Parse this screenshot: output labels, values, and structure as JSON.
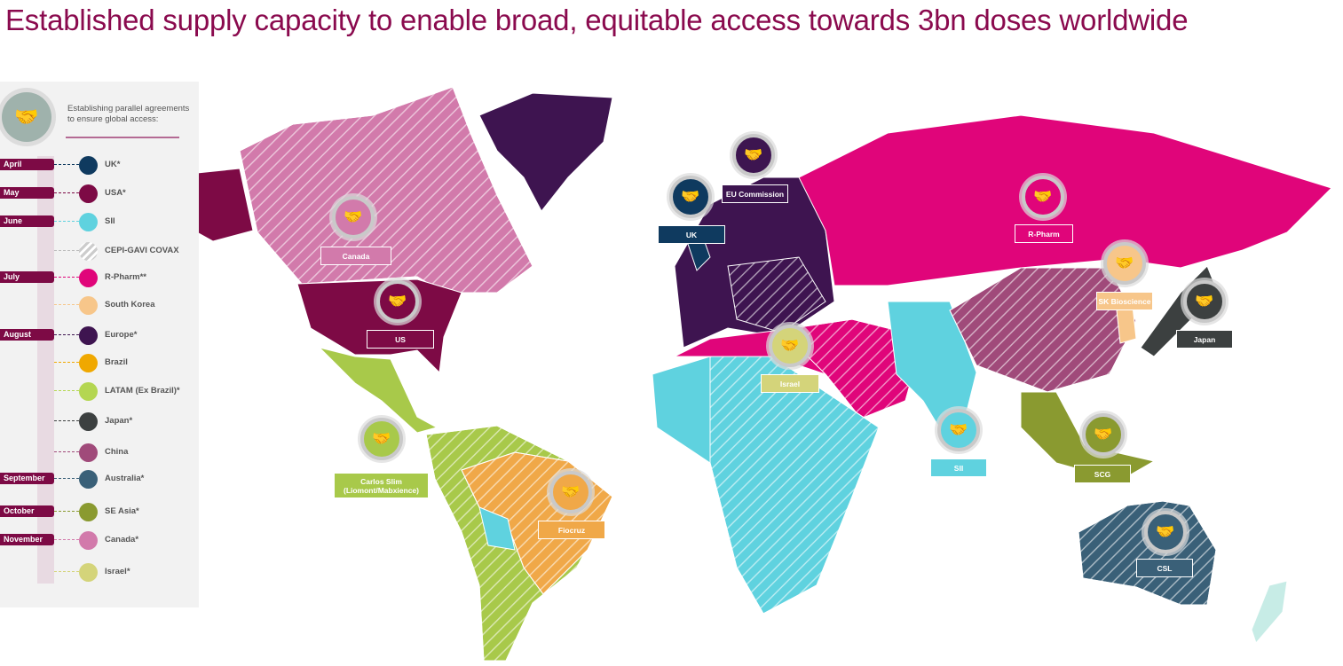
{
  "title": "Established supply capacity to enable broad, equitable access towards 3bn doses worldwide",
  "legend": {
    "intro": "Establishing parallel agreements to ensure global access:",
    "icon": "handshake-icon",
    "rows": [
      {
        "month": "April",
        "label": "UK*",
        "color": "#0f3a5f"
      },
      {
        "month": "May",
        "label": "USA*",
        "color": "#7d0a45"
      },
      {
        "month": "June",
        "label": "SII",
        "color": "#5fd2df"
      },
      {
        "month": "",
        "label": "CEPI-GAVI COVAX",
        "color": "hatched-grey"
      },
      {
        "month": "July",
        "label": "R-Pharm**",
        "color": "#e0057a"
      },
      {
        "month": "",
        "label": "South Korea",
        "color": "#f7c68a"
      },
      {
        "month": "August",
        "label": "Europe*",
        "color": "#3e1450"
      },
      {
        "month": "",
        "label": "Brazil",
        "color": "#f0a800"
      },
      {
        "month": "",
        "label": "LATAM (Ex Brazil)*",
        "color": "#b4d651"
      },
      {
        "month": "",
        "label": "Japan*",
        "color": "#3c4040"
      },
      {
        "month": "",
        "label": "China",
        "color": "#a04a7a"
      },
      {
        "month": "September",
        "label": "Australia*",
        "color": "#3a6078"
      },
      {
        "month": "October",
        "label": "SE Asia*",
        "color": "#8a9a30"
      },
      {
        "month": "November",
        "label": "Canada*",
        "color": "#d27aab"
      },
      {
        "month": "",
        "label": "Israel*",
        "color": "#d4d47a"
      }
    ]
  },
  "markers": [
    {
      "label": "Canada",
      "color": "#d27aab",
      "icon": "handshake-icon"
    },
    {
      "label": "US",
      "color": "#7d0a45",
      "icon": "handshake-icon"
    },
    {
      "label": "Carlos Slim (Liomont/Mabxience)",
      "color": "#a8c94a",
      "icon": "handshake-icon"
    },
    {
      "label": "Fiocruz",
      "color": "#f0a848",
      "icon": "handshake-icon"
    },
    {
      "label": "UK",
      "color": "#0f3a5f",
      "icon": "handshake-icon"
    },
    {
      "label": "EU Commission",
      "color": "#3d1550",
      "icon": "handshake-icon"
    },
    {
      "label": "R-Pharm",
      "color": "#e0057a",
      "icon": "handshake-icon"
    },
    {
      "label": "SK Bioscience",
      "color": "#f7c68a",
      "icon": "handshake-icon"
    },
    {
      "label": "Japan",
      "color": "#3c4040",
      "icon": "handshake-icon"
    },
    {
      "label": "Israel",
      "color": "#d4d47a",
      "icon": "handshake-icon"
    },
    {
      "label": "SII",
      "color": "#5fd2df",
      "icon": "handshake-icon"
    },
    {
      "label": "SCG",
      "color": "#8a9a30",
      "icon": "handshake-icon"
    },
    {
      "label": "CSL",
      "color": "#3a6078",
      "icon": "handshake-icon"
    }
  ]
}
